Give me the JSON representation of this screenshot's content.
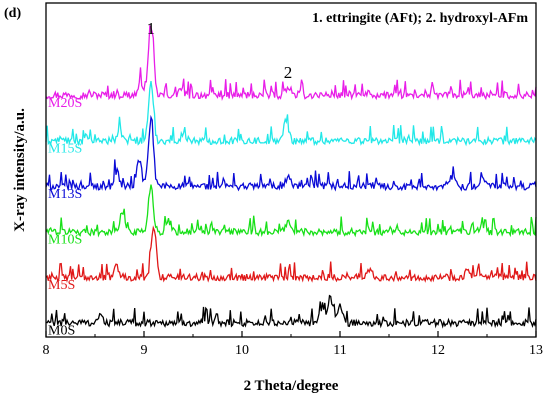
{
  "chart_data": {
    "type": "line",
    "panel_label": "(d)",
    "xlabel": "2 Theta/degree",
    "ylabel": "X-ray intensity/a.u.",
    "xlim": [
      8,
      13
    ],
    "x_ticks": [
      "8",
      "9",
      "10",
      "11",
      "12",
      "13"
    ],
    "annotation": "1. ettringite (AFt); 2. hydroxyl-AFm",
    "peak_markers": [
      {
        "label": "1",
        "x": 9.07
      },
      {
        "label": "2",
        "x": 10.47
      }
    ],
    "grid": false,
    "y_ticks_shown": false,
    "series": [
      {
        "name": "M20S",
        "color": "#e81ee8",
        "offset": 5,
        "peaks": [
          [
            9.07,
            3.2
          ],
          [
            8.97,
            0.6
          ],
          [
            10.45,
            0.3
          ],
          [
            9.38,
            0.3
          ]
        ]
      },
      {
        "name": "M15S",
        "color": "#22e8e8",
        "offset": 4,
        "peaks": [
          [
            9.07,
            2.6
          ],
          [
            10.45,
            0.9
          ],
          [
            8.75,
            0.4
          ],
          [
            9.4,
            0.3
          ]
        ]
      },
      {
        "name": "M13S",
        "color": "#0a0ad6",
        "offset": 3,
        "peaks": [
          [
            9.07,
            3.0
          ],
          [
            8.95,
            1.2
          ],
          [
            8.72,
            0.7
          ],
          [
            10.47,
            0.4
          ],
          [
            12.15,
            0.4
          ],
          [
            12.45,
            0.4
          ]
        ]
      },
      {
        "name": "M10S",
        "color": "#18e018",
        "offset": 2,
        "peaks": [
          [
            9.07,
            2.1
          ],
          [
            8.78,
            0.9
          ],
          [
            10.47,
            0.5
          ],
          [
            9.25,
            0.5
          ],
          [
            12.45,
            0.3
          ]
        ]
      },
      {
        "name": "M5S",
        "color": "#e01818",
        "offset": 1,
        "peaks": [
          [
            9.1,
            2.3
          ],
          [
            8.72,
            0.5
          ],
          [
            11.3,
            0.4
          ],
          [
            12.3,
            0.3
          ]
        ]
      },
      {
        "name": "M0S",
        "color": "#000000",
        "offset": 0,
        "peaks": [
          [
            10.9,
            1.2
          ],
          [
            11.0,
            0.8
          ],
          [
            10.8,
            0.5
          ],
          [
            8.55,
            0.3
          ]
        ]
      }
    ]
  }
}
